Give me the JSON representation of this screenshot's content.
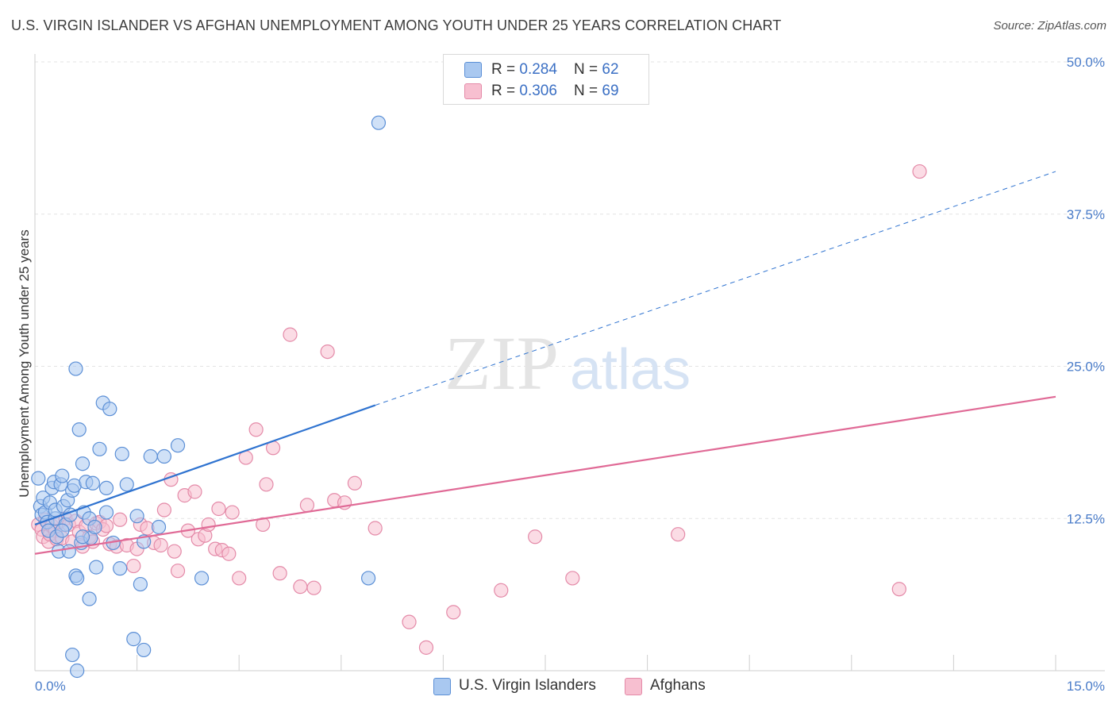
{
  "header": {
    "title": "U.S. VIRGIN ISLANDER VS AFGHAN UNEMPLOYMENT AMONG YOUTH UNDER 25 YEARS CORRELATION CHART",
    "source": "Source: ZipAtlas.com"
  },
  "watermark": {
    "zip": "ZIP",
    "atlas": "atlas"
  },
  "legend": {
    "series1": {
      "r_label": "R = ",
      "r_value": "0.284",
      "n_label": "N = ",
      "n_value": "62"
    },
    "series2": {
      "r_label": "R = ",
      "r_value": "0.306",
      "n_label": "N = ",
      "n_value": "69"
    }
  },
  "bottom_legend": {
    "series1": "U.S. Virgin Islanders",
    "series2": "Afghans"
  },
  "colors": {
    "series1_fill": "#a9c8f0",
    "series1_stroke": "#5b8fd6",
    "series1_line": "#2f73d0",
    "series2_fill": "#f7bfd0",
    "series2_stroke": "#e48aa8",
    "series2_line": "#e06a96",
    "tick_text": "#4a7cc9",
    "grid": "#e3e3e3"
  },
  "chart_data": {
    "type": "scatter",
    "title": "U.S. VIRGIN ISLANDER VS AFGHAN UNEMPLOYMENT AMONG YOUTH UNDER 25 YEARS CORRELATION CHART",
    "xlabel": "",
    "ylabel": "Unemployment Among Youth under 25 years",
    "xlim": [
      0,
      15
    ],
    "ylim": [
      0,
      50
    ],
    "x_ticks": [
      0,
      1.5,
      3,
      4.5,
      6,
      7.5,
      9,
      10.5,
      12,
      13.5,
      15
    ],
    "x_tick_labels": {
      "0": "0.0%",
      "15": "15.0%"
    },
    "y_ticks": [
      12.5,
      25,
      37.5,
      50
    ],
    "y_tick_labels": [
      "12.5%",
      "25.0%",
      "37.5%",
      "50.0%"
    ],
    "grid": true,
    "series": [
      {
        "name": "U.S. Virgin Islanders",
        "r": 0.284,
        "n": 62,
        "trend": {
          "x0": 0,
          "y0": 12.0,
          "x1": 5.0,
          "y1": 21.8,
          "dash_to_x": 15,
          "dash_to_y": 41.0
        },
        "points": [
          [
            0.05,
            15.8
          ],
          [
            0.08,
            13.5
          ],
          [
            0.1,
            12.8
          ],
          [
            0.12,
            14.2
          ],
          [
            0.15,
            13.0
          ],
          [
            0.18,
            12.2
          ],
          [
            0.2,
            11.5
          ],
          [
            0.22,
            13.8
          ],
          [
            0.25,
            15.0
          ],
          [
            0.28,
            15.5
          ],
          [
            0.3,
            12.5
          ],
          [
            0.3,
            13.2
          ],
          [
            0.32,
            11.0
          ],
          [
            0.35,
            9.8
          ],
          [
            0.38,
            15.3
          ],
          [
            0.4,
            16.0
          ],
          [
            0.42,
            13.5
          ],
          [
            0.45,
            12.0
          ],
          [
            0.48,
            14.0
          ],
          [
            0.5,
            9.8
          ],
          [
            0.52,
            12.8
          ],
          [
            0.55,
            14.8
          ],
          [
            0.58,
            15.2
          ],
          [
            0.6,
            24.8
          ],
          [
            0.6,
            7.8
          ],
          [
            0.62,
            7.6
          ],
          [
            0.65,
            19.8
          ],
          [
            0.68,
            10.5
          ],
          [
            0.7,
            17.0
          ],
          [
            0.72,
            13.0
          ],
          [
            0.75,
            15.5
          ],
          [
            0.8,
            12.5
          ],
          [
            0.8,
            5.9
          ],
          [
            0.82,
            10.9
          ],
          [
            0.85,
            15.4
          ],
          [
            0.88,
            11.8
          ],
          [
            0.9,
            8.5
          ],
          [
            0.95,
            18.2
          ],
          [
            1.0,
            22.0
          ],
          [
            1.05,
            13.0
          ],
          [
            1.05,
            15.0
          ],
          [
            1.1,
            21.5
          ],
          [
            1.15,
            10.5
          ],
          [
            1.25,
            8.4
          ],
          [
            1.28,
            17.8
          ],
          [
            1.35,
            15.3
          ],
          [
            1.45,
            2.6
          ],
          [
            1.5,
            12.7
          ],
          [
            1.55,
            7.1
          ],
          [
            1.6,
            10.6
          ],
          [
            1.6,
            1.7
          ],
          [
            1.7,
            17.6
          ],
          [
            1.82,
            11.8
          ],
          [
            1.9,
            17.6
          ],
          [
            2.1,
            18.5
          ],
          [
            0.62,
            0.0
          ],
          [
            0.55,
            1.3
          ],
          [
            2.45,
            7.6
          ],
          [
            5.05,
            45.0
          ],
          [
            4.9,
            7.6
          ],
          [
            0.4,
            11.5
          ],
          [
            0.7,
            11.0
          ]
        ]
      },
      {
        "name": "Afghans",
        "r": 0.306,
        "n": 69,
        "trend": {
          "x0": 0,
          "y0": 9.6,
          "x1": 15,
          "y1": 22.5
        },
        "points": [
          [
            0.05,
            12.0
          ],
          [
            0.1,
            11.6
          ],
          [
            0.12,
            11.0
          ],
          [
            0.15,
            12.4
          ],
          [
            0.2,
            10.6
          ],
          [
            0.22,
            11.2
          ],
          [
            0.25,
            11.9
          ],
          [
            0.3,
            11.5
          ],
          [
            0.32,
            10.8
          ],
          [
            0.35,
            12.2
          ],
          [
            0.4,
            10.9
          ],
          [
            0.45,
            12.5
          ],
          [
            0.5,
            12.0
          ],
          [
            0.55,
            10.6
          ],
          [
            0.6,
            12.3
          ],
          [
            0.65,
            11.4
          ],
          [
            0.7,
            10.2
          ],
          [
            0.75,
            11.9
          ],
          [
            0.8,
            11.0
          ],
          [
            0.85,
            10.6
          ],
          [
            0.9,
            12.1
          ],
          [
            0.95,
            12.2
          ],
          [
            1.0,
            11.6
          ],
          [
            1.05,
            11.9
          ],
          [
            1.1,
            10.4
          ],
          [
            1.2,
            10.2
          ],
          [
            1.25,
            12.4
          ],
          [
            1.35,
            10.3
          ],
          [
            1.45,
            8.6
          ],
          [
            1.5,
            10.0
          ],
          [
            1.55,
            12.0
          ],
          [
            1.65,
            11.7
          ],
          [
            1.75,
            10.5
          ],
          [
            1.85,
            10.3
          ],
          [
            1.9,
            13.2
          ],
          [
            2.0,
            15.7
          ],
          [
            2.05,
            9.8
          ],
          [
            2.1,
            8.2
          ],
          [
            2.2,
            14.4
          ],
          [
            2.25,
            11.5
          ],
          [
            2.35,
            14.7
          ],
          [
            2.4,
            10.8
          ],
          [
            2.5,
            11.1
          ],
          [
            2.55,
            12.0
          ],
          [
            2.65,
            10.0
          ],
          [
            2.7,
            13.3
          ],
          [
            2.75,
            9.9
          ],
          [
            2.85,
            9.6
          ],
          [
            2.9,
            13.0
          ],
          [
            3.0,
            7.6
          ],
          [
            3.1,
            17.5
          ],
          [
            3.25,
            19.8
          ],
          [
            3.35,
            12.0
          ],
          [
            3.4,
            15.3
          ],
          [
            3.5,
            18.3
          ],
          [
            3.6,
            8.0
          ],
          [
            3.75,
            27.6
          ],
          [
            3.9,
            6.9
          ],
          [
            4.0,
            13.6
          ],
          [
            4.1,
            6.8
          ],
          [
            4.3,
            26.2
          ],
          [
            4.4,
            14.0
          ],
          [
            4.55,
            13.8
          ],
          [
            4.7,
            15.4
          ],
          [
            5.0,
            11.7
          ],
          [
            5.5,
            4.0
          ],
          [
            5.75,
            1.9
          ],
          [
            6.15,
            4.8
          ],
          [
            6.85,
            6.6
          ]
        ],
        "extra_points": [
          [
            7.35,
            11.0
          ],
          [
            7.9,
            7.6
          ],
          [
            9.45,
            11.2
          ],
          [
            12.7,
            6.7
          ],
          [
            13.0,
            41.0
          ]
        ]
      }
    ]
  }
}
